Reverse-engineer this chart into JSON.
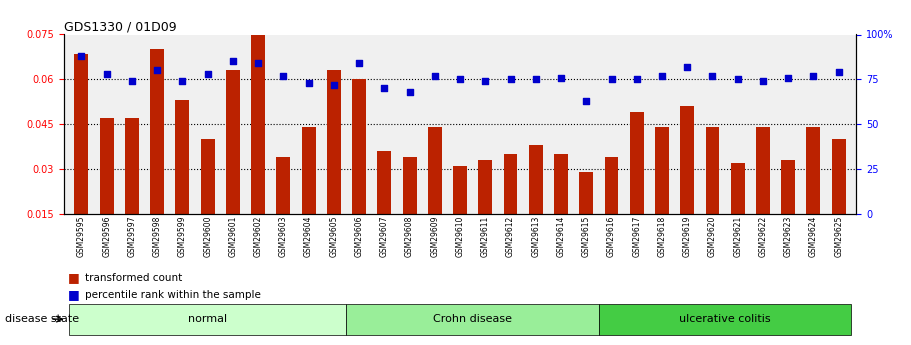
{
  "title": "GDS1330 / 01D09",
  "samples": [
    "GSM29595",
    "GSM29596",
    "GSM29597",
    "GSM29598",
    "GSM29599",
    "GSM29600",
    "GSM29601",
    "GSM29602",
    "GSM29603",
    "GSM29604",
    "GSM29605",
    "GSM29606",
    "GSM29607",
    "GSM29608",
    "GSM29609",
    "GSM29610",
    "GSM29611",
    "GSM29612",
    "GSM29613",
    "GSM29614",
    "GSM29615",
    "GSM29616",
    "GSM29617",
    "GSM29618",
    "GSM29619",
    "GSM29620",
    "GSM29621",
    "GSM29622",
    "GSM29623",
    "GSM29624",
    "GSM29625"
  ],
  "transformed_count": [
    0.0685,
    0.047,
    0.047,
    0.07,
    0.053,
    0.04,
    0.063,
    0.075,
    0.034,
    0.044,
    0.063,
    0.06,
    0.036,
    0.034,
    0.044,
    0.031,
    0.033,
    0.035,
    0.038,
    0.035,
    0.029,
    0.034,
    0.049,
    0.044,
    0.051,
    0.044,
    0.032,
    0.044,
    0.033,
    0.044,
    0.04
  ],
  "percentile_rank": [
    88,
    78,
    74,
    80,
    74,
    78,
    85,
    84,
    77,
    73,
    72,
    84,
    70,
    68,
    77,
    75,
    74,
    75,
    75,
    76,
    63,
    75,
    75,
    77,
    82,
    77,
    75,
    74,
    76,
    77,
    79
  ],
  "disease_groups": [
    {
      "label": "normal",
      "start": 0,
      "end": 11,
      "color": "#ccffcc"
    },
    {
      "label": "Crohn disease",
      "start": 11,
      "end": 21,
      "color": "#99ee99"
    },
    {
      "label": "ulcerative colitis",
      "start": 21,
      "end": 31,
      "color": "#44cc44"
    }
  ],
  "ylim_left": [
    0.015,
    0.075
  ],
  "ylim_right": [
    0,
    100
  ],
  "yticks_left": [
    0.015,
    0.03,
    0.045,
    0.06,
    0.075
  ],
  "yticks_right": [
    0,
    25,
    50,
    75,
    100
  ],
  "ytick_labels_left": [
    "0.015",
    "0.03",
    "0.045",
    "0.06",
    "0.075"
  ],
  "ytick_labels_right": [
    "0",
    "25",
    "50",
    "75",
    "100%"
  ],
  "bar_color": "#bb2200",
  "dot_color": "#0000cc",
  "bg_color": "#f0f0f0",
  "legend_bar": "transformed count",
  "legend_dot": "percentile rank within the sample"
}
